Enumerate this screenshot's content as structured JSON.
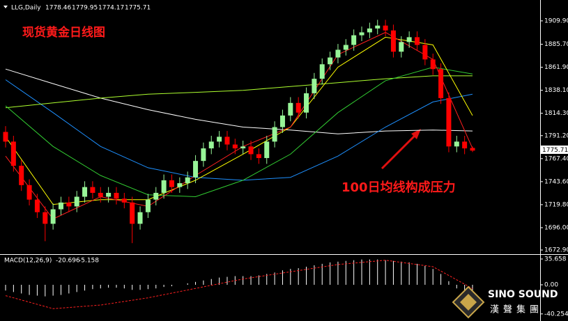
{
  "chart_data": {
    "type": "candlestick",
    "symbol": "LLG,Daily",
    "title": "现货黄金日线图",
    "annotation": "100日均线构成压力",
    "up_color": "#98f598",
    "down_color": "#ff0000",
    "open": [
      1795,
      1785,
      1760,
      1740,
      1725,
      1712,
      1700,
      1715,
      1722,
      1718,
      1728,
      1738,
      1732,
      1728,
      1732,
      1726,
      1722,
      1700,
      1712,
      1725,
      1732,
      1745,
      1738,
      1742,
      1748,
      1765,
      1778,
      1785,
      1790,
      1782,
      1778,
      1780,
      1772,
      1768,
      1785,
      1800,
      1812,
      1825,
      1815,
      1835,
      1850,
      1865,
      1872,
      1880,
      1885,
      1895,
      1898,
      1902,
      1905,
      1900,
      1878,
      1888,
      1893,
      1885,
      1870,
      1860,
      1830,
      1780,
      1785,
      1778.46
    ],
    "high": [
      1801,
      1791,
      1766,
      1746,
      1731,
      1718,
      1721,
      1728,
      1728,
      1734,
      1744,
      1744,
      1738,
      1738,
      1738,
      1732,
      1728,
      1718,
      1731,
      1738,
      1751,
      1751,
      1748,
      1754,
      1771,
      1784,
      1791,
      1796,
      1796,
      1788,
      1786,
      1786,
      1778,
      1791,
      1806,
      1818,
      1831,
      1831,
      1841,
      1856,
      1871,
      1878,
      1886,
      1891,
      1901,
      1904,
      1908,
      1911,
      1911,
      1906,
      1894,
      1899,
      1899,
      1891,
      1876,
      1866,
      1836,
      1791,
      1791,
      1779.95
    ],
    "low": [
      1779,
      1754,
      1734,
      1719,
      1706,
      1682,
      1694,
      1709,
      1712,
      1712,
      1722,
      1726,
      1722,
      1722,
      1720,
      1716,
      1680,
      1694,
      1706,
      1719,
      1726,
      1732,
      1732,
      1736,
      1742,
      1759,
      1772,
      1779,
      1776,
      1772,
      1772,
      1766,
      1762,
      1762,
      1779,
      1794,
      1806,
      1809,
      1809,
      1829,
      1844,
      1859,
      1866,
      1874,
      1879,
      1889,
      1892,
      1896,
      1894,
      1872,
      1872,
      1882,
      1879,
      1864,
      1854,
      1824,
      1774,
      1774,
      1772,
      1774.17
    ],
    "close": [
      1785,
      1760,
      1740,
      1725,
      1712,
      1700,
      1715,
      1722,
      1718,
      1728,
      1738,
      1732,
      1728,
      1732,
      1726,
      1722,
      1700,
      1712,
      1725,
      1732,
      1745,
      1738,
      1742,
      1748,
      1765,
      1778,
      1785,
      1790,
      1782,
      1778,
      1780,
      1772,
      1768,
      1785,
      1800,
      1812,
      1825,
      1815,
      1835,
      1850,
      1865,
      1872,
      1880,
      1885,
      1895,
      1898,
      1902,
      1905,
      1900,
      1878,
      1888,
      1893,
      1885,
      1870,
      1860,
      1830,
      1780,
      1785,
      1778,
      1775.71
    ],
    "ylim": [
      1668.6,
      1925.7
    ],
    "yticks": [
      {
        "value": 1909.9,
        "label": "1909.90"
      },
      {
        "value": 1885.7,
        "label": "1885.70"
      },
      {
        "value": 1861.9,
        "label": "1861.90"
      },
      {
        "value": 1838.1,
        "label": "1838.10"
      },
      {
        "value": 1814.3,
        "label": "1814.30"
      },
      {
        "value": 1791.2,
        "label": "1791.20"
      },
      {
        "value": 1767.4,
        "label": "1767.40"
      },
      {
        "value": 1743.6,
        "label": "1743.60"
      },
      {
        "value": 1719.8,
        "label": "1719.80"
      },
      {
        "value": 1696,
        "label": "1696.00"
      },
      {
        "value": 1672.9,
        "label": "1672.90"
      }
    ],
    "moving_averages": [
      {
        "color": "#ffffff",
        "x": [
          0,
          6,
          12,
          18,
          24,
          30,
          36,
          42,
          48,
          54,
          59
        ],
        "values": [
          1860,
          1845,
          1830,
          1818,
          1808,
          1800,
          1797,
          1793,
          1796,
          1797,
          1796
        ]
      },
      {
        "color": "#1e90ff",
        "x": [
          0,
          6,
          12,
          18,
          24,
          30,
          36,
          42,
          48,
          54,
          59
        ],
        "values": [
          1849,
          1815,
          1780,
          1758,
          1748,
          1745,
          1748,
          1770,
          1800,
          1826,
          1834
        ]
      },
      {
        "color": "#adff2f",
        "x": [
          0,
          6,
          12,
          18,
          24,
          30,
          36,
          42,
          48,
          54,
          59
        ],
        "values": [
          1820,
          1825,
          1830,
          1834,
          1836,
          1838,
          1842,
          1846,
          1850,
          1853,
          1853
        ]
      },
      {
        "color": "#32cd32",
        "x": [
          0,
          6,
          12,
          18,
          24,
          30,
          36,
          42,
          48,
          54,
          59
        ],
        "values": [
          1822,
          1780,
          1750,
          1730,
          1728,
          1745,
          1772,
          1815,
          1848,
          1862,
          1855
        ]
      },
      {
        "color": "#ffff00",
        "x": [
          0,
          6,
          12,
          18,
          24,
          30,
          36,
          42,
          48,
          54,
          59
        ],
        "values": [
          1790,
          1720,
          1725,
          1725,
          1745,
          1772,
          1800,
          1862,
          1893,
          1885,
          1812
        ]
      },
      {
        "color": "#ff2020",
        "x": [
          0,
          6,
          12,
          18,
          24,
          30,
          36,
          42,
          48,
          54,
          59
        ],
        "values": [
          1770,
          1705,
          1728,
          1718,
          1750,
          1780,
          1800,
          1875,
          1898,
          1870,
          1778
        ]
      }
    ],
    "macd": {
      "type": "bar",
      "label": "MACD(12,26,9)",
      "color": "#ffffff",
      "values": [
        -8,
        -10,
        -12,
        -14,
        -15,
        -16,
        -15,
        -14,
        -12,
        -10,
        -8,
        -6,
        -5,
        -4,
        -4,
        -5,
        -7,
        -7,
        -6,
        -5,
        -3,
        -2,
        0,
        2,
        4,
        6,
        8,
        10,
        11,
        12,
        12,
        12,
        13,
        15,
        17,
        20,
        22,
        23,
        25,
        27,
        29,
        31,
        32,
        33,
        34,
        35,
        35,
        35,
        34,
        33,
        32,
        31,
        29,
        26,
        22,
        15,
        5,
        -5,
        -13,
        -20.696
      ],
      "signal": {
        "color": "#ff2020",
        "x": [
          0,
          6,
          12,
          18,
          24,
          30,
          36,
          42,
          48,
          54,
          59
        ],
        "values": [
          -15,
          -33,
          -28,
          -18,
          -5,
          8,
          18,
          28,
          34,
          25,
          -5.158
        ]
      },
      "ylim": [
        -49.1,
        41.4
      ],
      "yticks": [
        35.658,
        {
          "value": 0,
          "label": "0.00"
        },
        -40.254
      ]
    }
  },
  "logo": {
    "name": "SINO SOUND",
    "subtitle": "漢聲集團"
  }
}
